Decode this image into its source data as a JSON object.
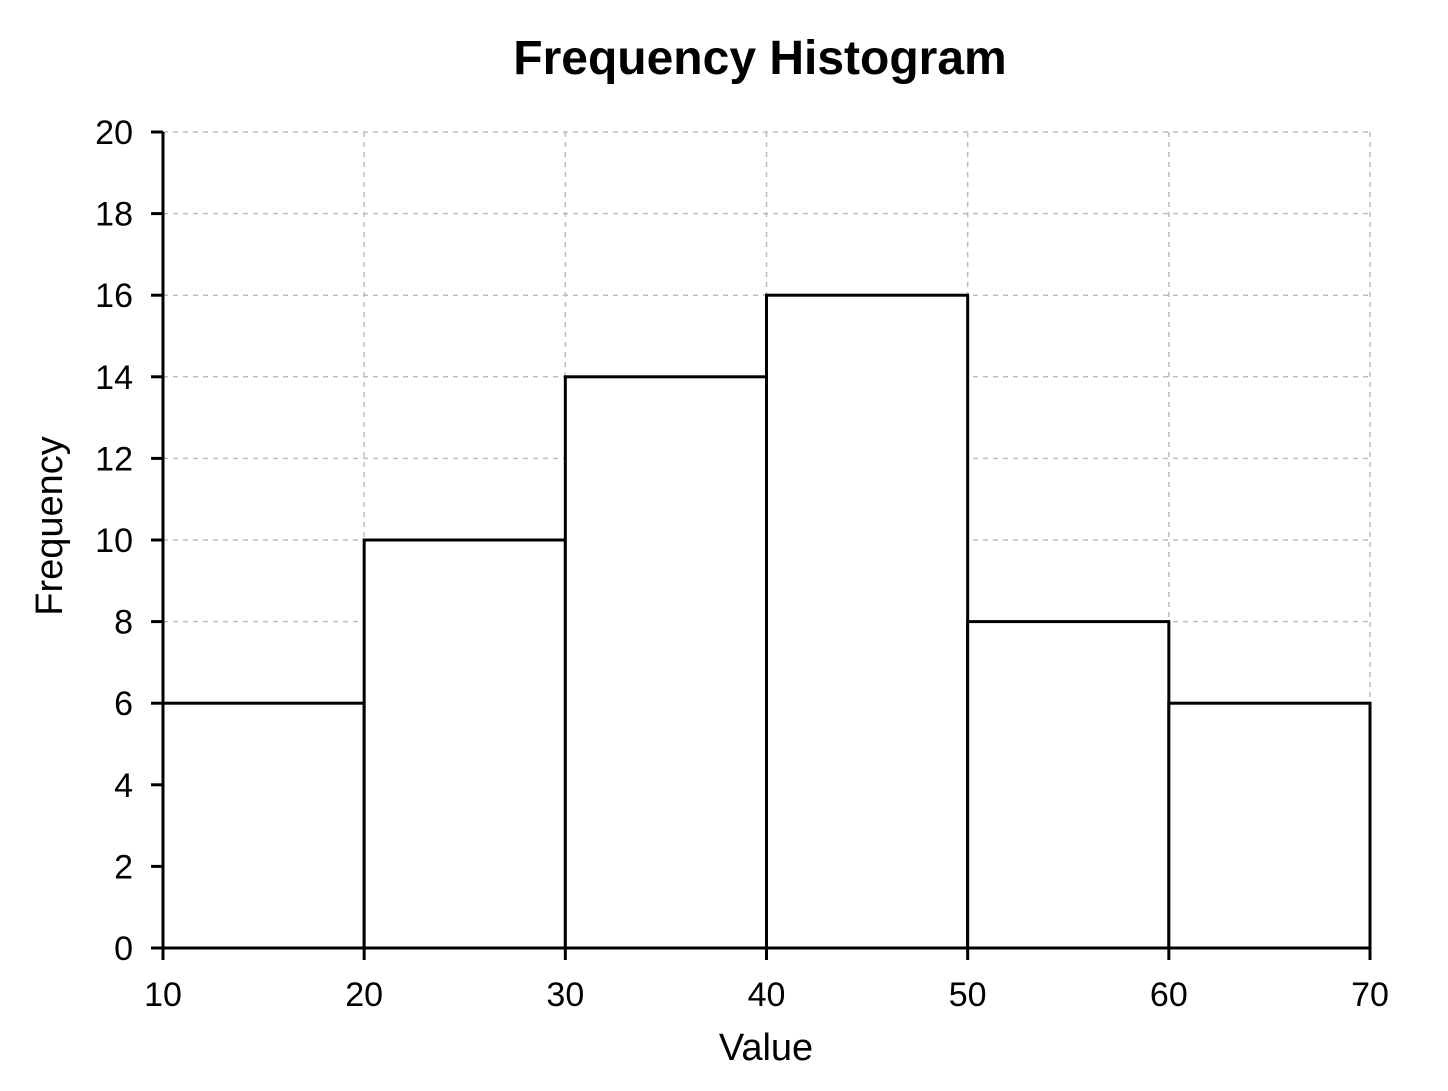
{
  "chart_data": {
    "type": "bar",
    "title": "Frequency Histogram",
    "xlabel": "Value",
    "ylabel": "Frequency",
    "xlim": [
      10,
      70
    ],
    "ylim": [
      0,
      20
    ],
    "bins": [
      {
        "start": 10,
        "end": 20,
        "value": 6
      },
      {
        "start": 20,
        "end": 30,
        "value": 10
      },
      {
        "start": 30,
        "end": 40,
        "value": 14
      },
      {
        "start": 40,
        "end": 50,
        "value": 16
      },
      {
        "start": 50,
        "end": 60,
        "value": 8
      },
      {
        "start": 60,
        "end": 70,
        "value": 6
      }
    ],
    "x_ticks": [
      10,
      20,
      30,
      40,
      50,
      60,
      70
    ],
    "y_ticks": [
      0,
      2,
      4,
      6,
      8,
      10,
      12,
      14,
      16,
      18,
      20
    ],
    "grid": true,
    "grid_style": "dashed",
    "bar_fill_color": "#ffffff",
    "bar_edge_color": "#000000",
    "grid_color": "#bdbdbd"
  }
}
